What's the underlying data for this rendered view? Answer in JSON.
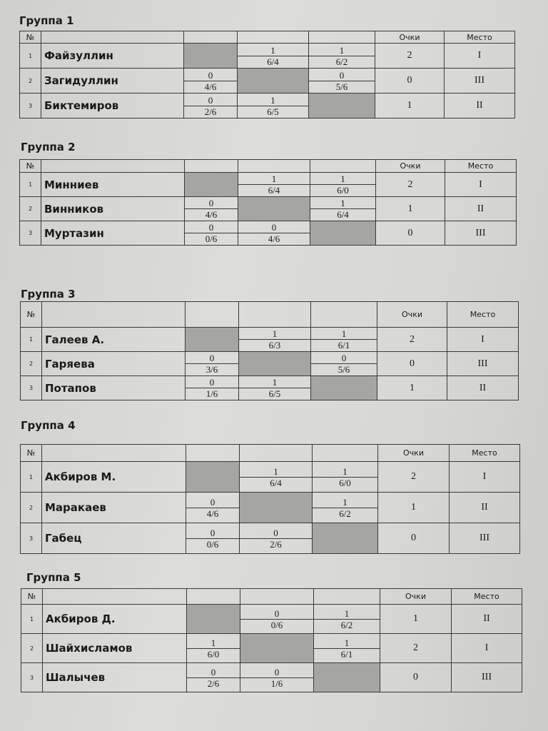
{
  "header": {
    "no": "№",
    "points": "Очки",
    "place": "Место"
  },
  "groups": [
    {
      "title": "Группа 1",
      "players": [
        {
          "no": "1",
          "name": "Файзуллин",
          "results": [
            null,
            {
              "w": "1",
              "s": "6/4"
            },
            {
              "w": "1",
              "s": "6/2"
            }
          ],
          "points": "2",
          "place": "I"
        },
        {
          "no": "2",
          "name": "Загидуллин",
          "results": [
            {
              "w": "0",
              "s": "4/6"
            },
            null,
            {
              "w": "0",
              "s": "5/6"
            }
          ],
          "points": "0",
          "place": "III"
        },
        {
          "no": "3",
          "name": "Биктемиров",
          "results": [
            {
              "w": "0",
              "s": "2/6"
            },
            {
              "w": "1",
              "s": "6/5"
            },
            null
          ],
          "points": "1",
          "place": "II"
        }
      ]
    },
    {
      "title": "Группа 2",
      "players": [
        {
          "no": "1",
          "name": "Минниев",
          "results": [
            null,
            {
              "w": "1",
              "s": "6/4"
            },
            {
              "w": "1",
              "s": "6/0"
            }
          ],
          "points": "2",
          "place": "I"
        },
        {
          "no": "2",
          "name": "Винников",
          "results": [
            {
              "w": "0",
              "s": "4/6"
            },
            null,
            {
              "w": "1",
              "s": "6/4"
            }
          ],
          "points": "1",
          "place": "II"
        },
        {
          "no": "3",
          "name": "Муртазин",
          "results": [
            {
              "w": "0",
              "s": "0/6"
            },
            {
              "w": "0",
              "s": "4/6"
            },
            null
          ],
          "points": "0",
          "place": "III"
        }
      ]
    },
    {
      "title": "Группа 3",
      "players": [
        {
          "no": "1",
          "name": "Галеев А.",
          "results": [
            null,
            {
              "w": "1",
              "s": "6/3"
            },
            {
              "w": "1",
              "s": "6/1"
            }
          ],
          "points": "2",
          "place": "I"
        },
        {
          "no": "2",
          "name": "Гаряева",
          "results": [
            {
              "w": "0",
              "s": "3/6"
            },
            null,
            {
              "w": "0",
              "s": "5/6"
            }
          ],
          "points": "0",
          "place": "III"
        },
        {
          "no": "3",
          "name": "Потапов",
          "results": [
            {
              "w": "0",
              "s": "1/6"
            },
            {
              "w": "1",
              "s": "6/5"
            },
            null
          ],
          "points": "1",
          "place": "II"
        }
      ]
    },
    {
      "title": "Группа 4",
      "players": [
        {
          "no": "1",
          "name": "Акбиров М.",
          "results": [
            null,
            {
              "w": "1",
              "s": "6/4"
            },
            {
              "w": "1",
              "s": "6/0"
            }
          ],
          "points": "2",
          "place": "I"
        },
        {
          "no": "2",
          "name": "Маракаев",
          "results": [
            {
              "w": "0",
              "s": "4/6"
            },
            null,
            {
              "w": "1",
              "s": "6/2"
            }
          ],
          "points": "1",
          "place": "II"
        },
        {
          "no": "3",
          "name": "Габец",
          "results": [
            {
              "w": "0",
              "s": "0/6"
            },
            {
              "w": "0",
              "s": "2/6"
            },
            null
          ],
          "points": "0",
          "place": "III"
        }
      ]
    },
    {
      "title": "Группа 5",
      "players": [
        {
          "no": "1",
          "name": "Акбиров Д.",
          "results": [
            null,
            {
              "w": "0",
              "s": "0/6"
            },
            {
              "w": "1",
              "s": "6/2"
            }
          ],
          "points": "1",
          "place": "II"
        },
        {
          "no": "2",
          "name": "Шайхисламов",
          "results": [
            {
              "w": "1",
              "s": "6/0"
            },
            null,
            {
              "w": "1",
              "s": "6/1"
            }
          ],
          "points": "2",
          "place": "I"
        },
        {
          "no": "3",
          "name": "Шалычев",
          "results": [
            {
              "w": "0",
              "s": "2/6"
            },
            {
              "w": "0",
              "s": "1/6"
            },
            null
          ],
          "points": "0",
          "place": "III"
        }
      ]
    }
  ]
}
